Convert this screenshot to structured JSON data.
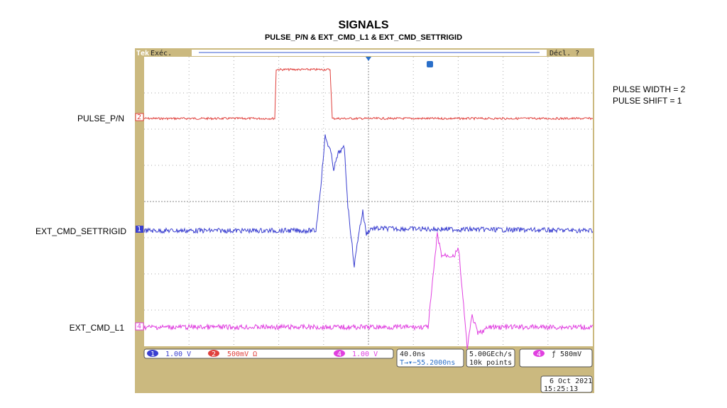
{
  "header": {
    "title": "SIGNALS",
    "subtitle": "PULSE_P/N & EXT_CMD_L1 & EXT_CMD_SETTRIGID"
  },
  "labels": [
    "PULSE_P/N",
    "EXT_CMD_SETTRIGID",
    "EXT_CMD_L1"
  ],
  "notes": [
    "PULSE WIDTH = 2",
    "PULSE SHIFT = 1"
  ],
  "scope": {
    "brand": "Tek",
    "mode": "Exéc.",
    "trigger_state": "Décl. ?",
    "channels": [
      {
        "id": "1",
        "scale": "1.00 V"
      },
      {
        "id": "2",
        "scale": "500mV Ω"
      },
      {
        "id": "4",
        "scale": "1.00 V"
      }
    ],
    "timebase": "40.0ns",
    "delay": "T→▾−55.2000ns",
    "sample_rate": "5.00GEch/s",
    "record": "10k points",
    "trigger_channel": "4",
    "trigger_level": "ƒ 580mV",
    "date": "6 Oct  2021",
    "time": "15:25:13"
  }
}
